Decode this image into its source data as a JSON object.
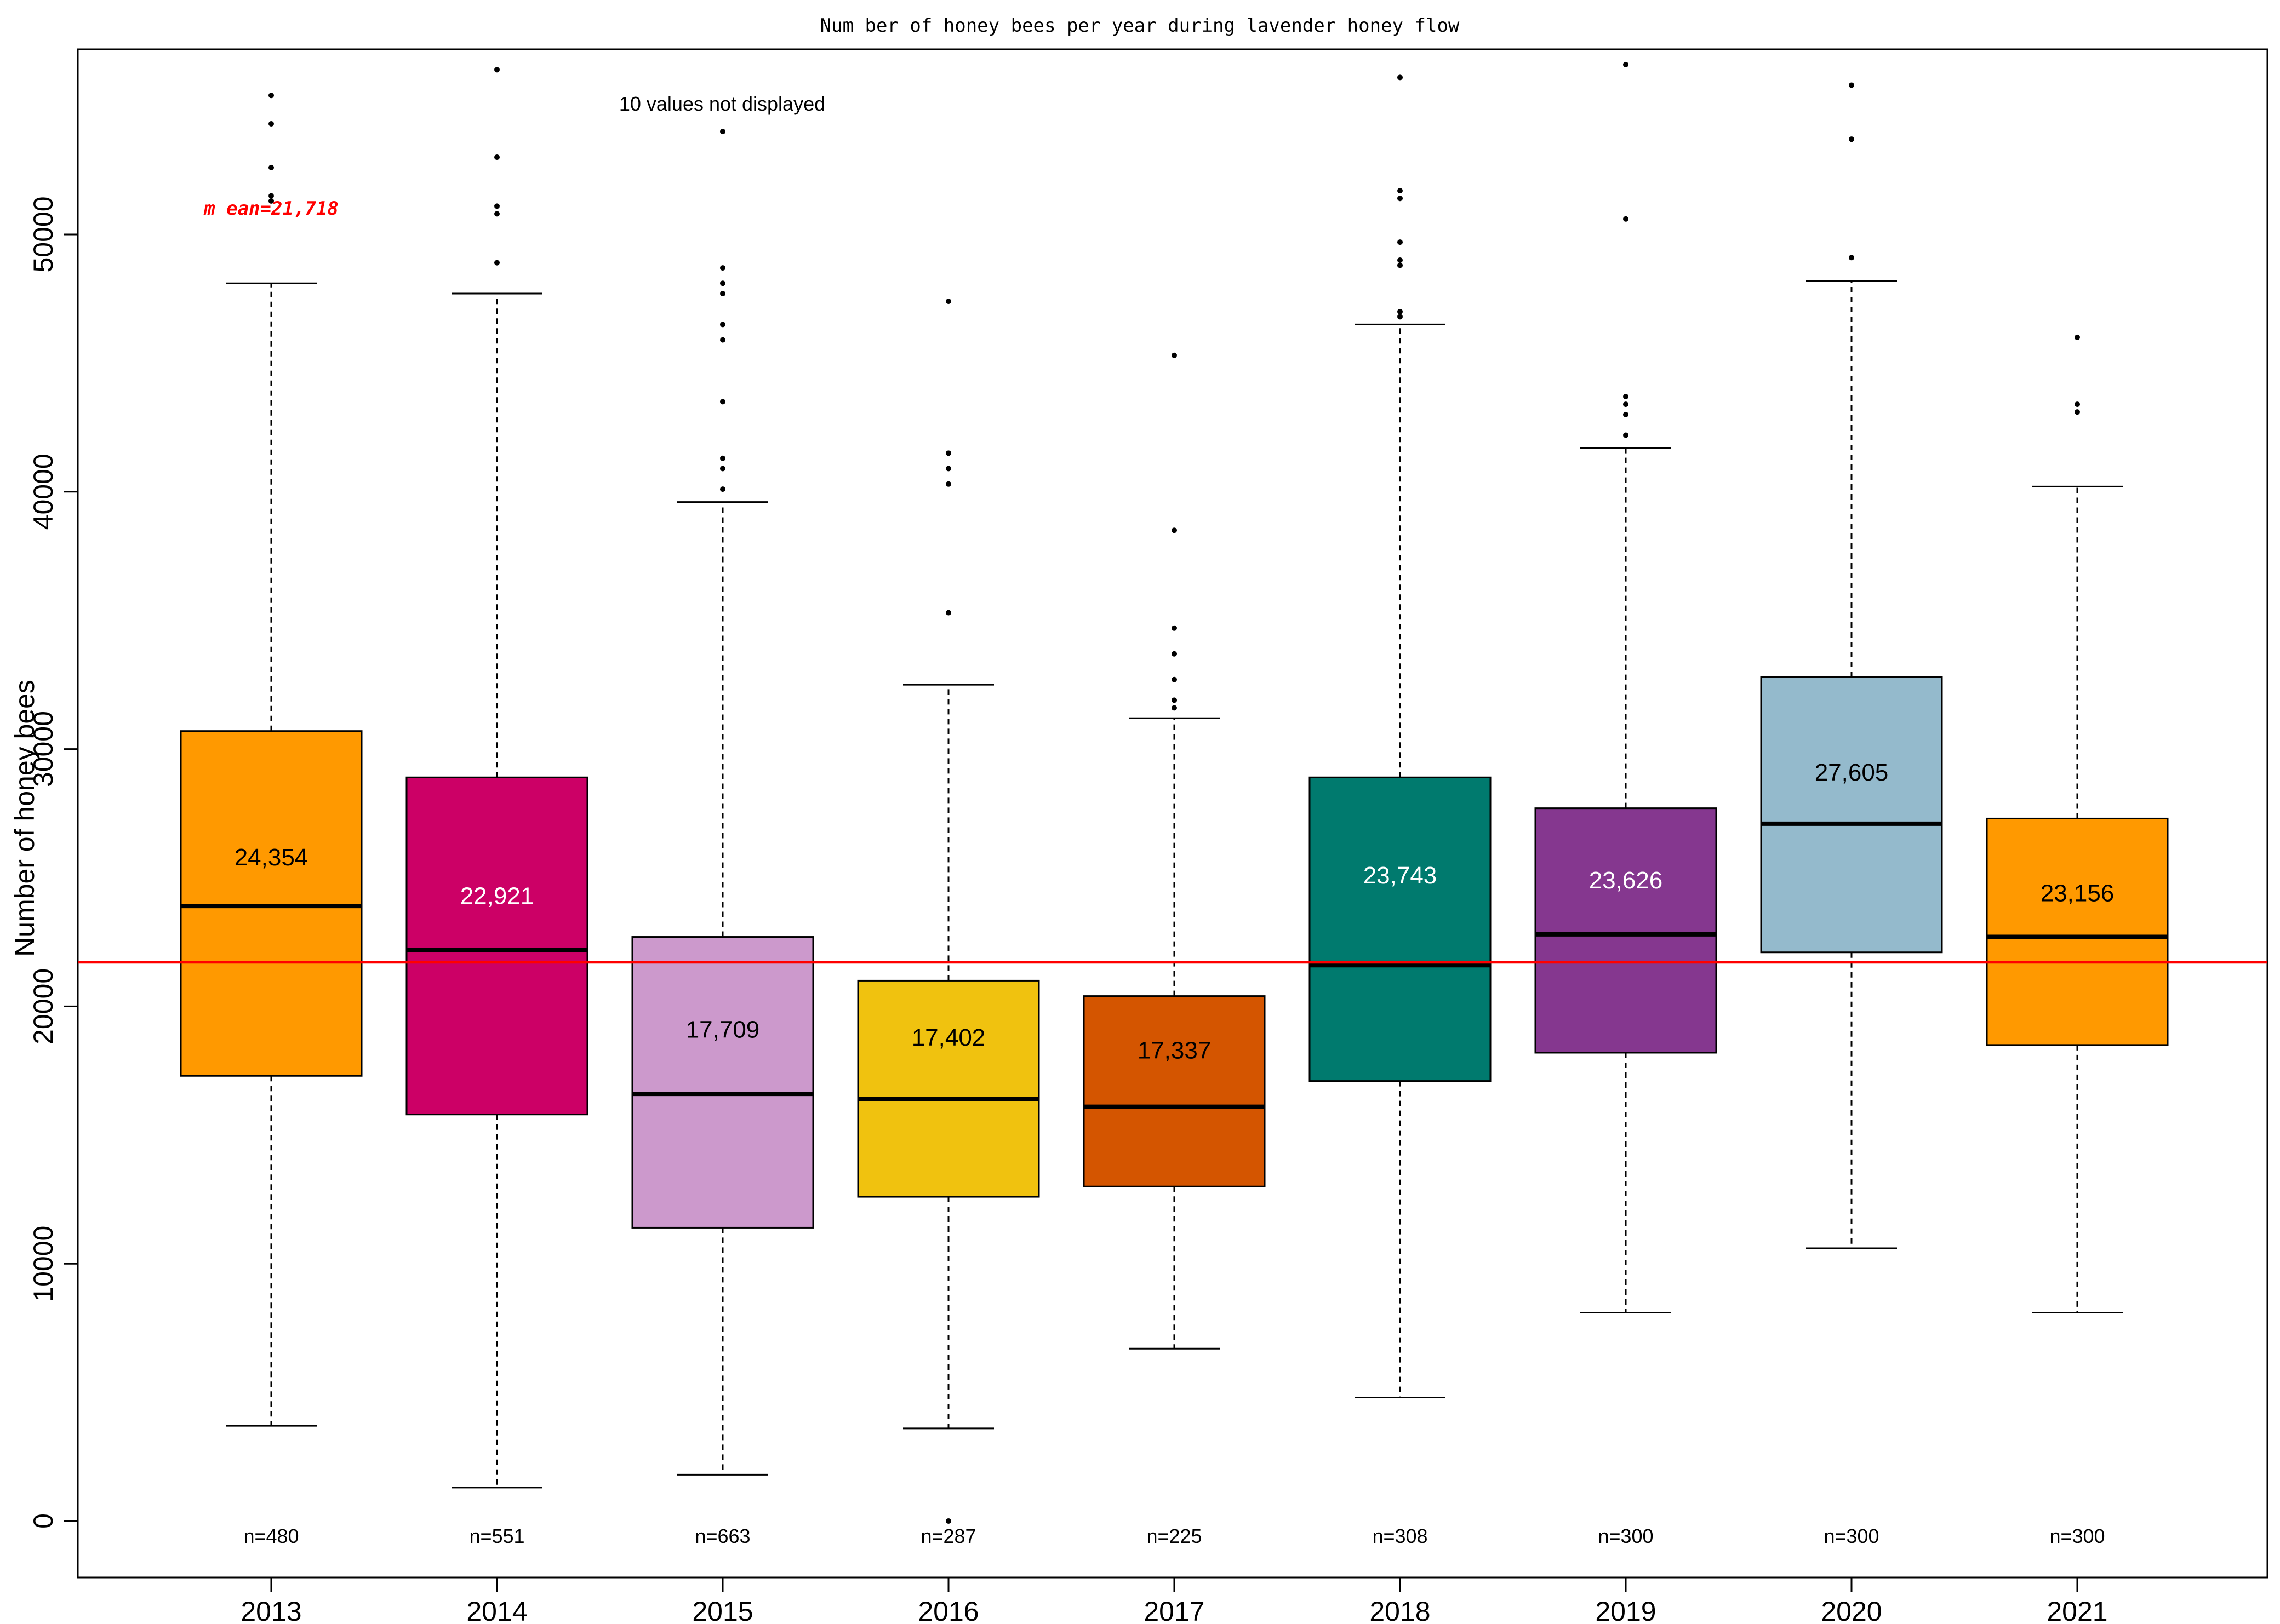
{
  "chart_data": {
    "type": "boxplot",
    "title": "Num ber of honey bees per year during  lavender honey  flow",
    "ylabel": "Number of honey bees",
    "xlabel": "",
    "ylim": [
      -2000,
      57500
    ],
    "yticks": [
      0,
      10000,
      20000,
      30000,
      40000,
      50000
    ],
    "ytick_labels": [
      "0",
      "10000",
      "20000",
      "30000",
      "40000",
      "50000"
    ],
    "mean_line": {
      "value": 21718,
      "label": "m ean=21,718",
      "color": "#ff0000"
    },
    "note": "10 values not displayed",
    "boxes": [
      {
        "category": "2013",
        "color": "#ff9900",
        "label_color": "#000000",
        "mean_label": "24,354",
        "n_label": "n=480",
        "whisker_low": 3700,
        "q1": 17300,
        "median": 23900,
        "q3": 30700,
        "whisker_high": 48100,
        "label_y": 25800,
        "outliers": [
          55400,
          54300,
          52600,
          51500,
          51300
        ]
      },
      {
        "category": "2014",
        "color": "#cc0066",
        "label_color": "#ffffff",
        "mean_label": "22,921",
        "n_label": "n=551",
        "whisker_low": 1300,
        "q1": 15800,
        "median": 22200,
        "q3": 28900,
        "whisker_high": 47700,
        "label_y": 24300,
        "outliers": [
          56400,
          53000,
          51100,
          50800,
          48900
        ]
      },
      {
        "category": "2015",
        "color": "#cc99cc",
        "label_color": "#000000",
        "mean_label": "17,709",
        "n_label": "n=663",
        "whisker_low": 1800,
        "q1": 11400,
        "median": 16600,
        "q3": 22700,
        "whisker_high": 39600,
        "label_y": 19100,
        "outliers": [
          54000,
          48700,
          48100,
          47700,
          46500,
          45900,
          43500,
          41300,
          40900,
          40100
        ]
      },
      {
        "category": "2016",
        "color": "#f0c20f",
        "label_color": "#000000",
        "mean_label": "17,402",
        "n_label": "n=287",
        "whisker_low": 3600,
        "q1": 12600,
        "median": 16400,
        "q3": 21000,
        "whisker_high": 32500,
        "label_y": 18800,
        "outliers": [
          47400,
          41500,
          40900,
          40300,
          35300,
          0
        ]
      },
      {
        "category": "2017",
        "color": "#d45500",
        "label_color": "#000000",
        "mean_label": "17,337",
        "n_label": "n=225",
        "whisker_low": 6700,
        "q1": 13000,
        "median": 16100,
        "q3": 20400,
        "whisker_high": 31200,
        "label_y": 18300,
        "outliers": [
          45300,
          38500,
          34700,
          33700,
          32700,
          31900,
          31600
        ]
      },
      {
        "category": "2018",
        "color": "#007a6e",
        "label_color": "#ffffff",
        "mean_label": "23,743",
        "n_label": "n=308",
        "whisker_low": 4800,
        "q1": 17100,
        "median": 21600,
        "q3": 28900,
        "whisker_high": 46500,
        "label_y": 25100,
        "outliers": [
          56100,
          51700,
          51400,
          49700,
          49000,
          48800,
          47000,
          46800
        ]
      },
      {
        "category": "2019",
        "color": "#85378f",
        "label_color": "#ffffff",
        "mean_label": "23,626",
        "n_label": "n=300",
        "whisker_low": 8100,
        "q1": 18200,
        "median": 22800,
        "q3": 27700,
        "whisker_high": 41700,
        "label_y": 24900,
        "outliers": [
          56600,
          50600,
          43700,
          43400,
          43000,
          42200
        ]
      },
      {
        "category": "2020",
        "color": "#94bacc",
        "label_color": "#000000",
        "mean_label": "27,605",
        "n_label": "n=300",
        "whisker_low": 10600,
        "q1": 22100,
        "median": 27100,
        "q3": 32800,
        "whisker_high": 48200,
        "label_y": 29100,
        "outliers": [
          55800,
          53700,
          49100
        ]
      },
      {
        "category": "2021",
        "color": "#ff9900",
        "label_color": "#000000",
        "mean_label": "23,156",
        "n_label": "n=300",
        "whisker_low": 8100,
        "q1": 18500,
        "median": 22700,
        "q3": 27300,
        "whisker_high": 40200,
        "label_y": 24400,
        "outliers": [
          46000,
          43400,
          43100
        ]
      }
    ]
  }
}
